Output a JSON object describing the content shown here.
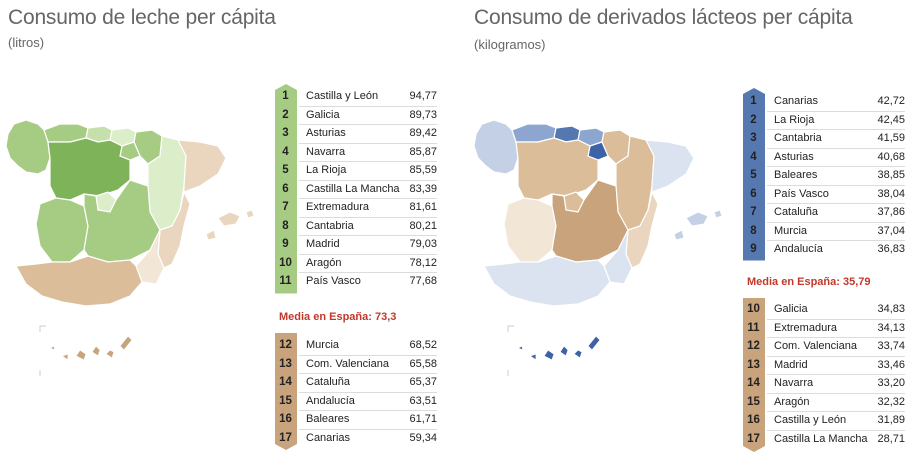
{
  "colors": {
    "green_1": "#7fb35a",
    "green_2": "#a6cc84",
    "green_3": "#c6e0ab",
    "green_4": "#dcedc9",
    "tan_1": "#c9a37b",
    "tan_2": "#dbbd9a",
    "tan_3": "#ead6bf",
    "tan_4": "#f2e6d6",
    "blue_1": "#5578b0",
    "blue_2": "#8da6cf",
    "blue_3": "#c3d0e6",
    "blue_4": "#dbe3f0",
    "media_red": "#c0392b"
  },
  "chart_data": [
    {
      "type": "table",
      "title": "Consumo de leche per cápita",
      "subtitle": "(litros)",
      "above_average": [
        {
          "rank": "1",
          "region": "Castilla y León",
          "value": "94,77"
        },
        {
          "rank": "2",
          "region": "Galicia",
          "value": "89,73"
        },
        {
          "rank": "3",
          "region": "Asturias",
          "value": "89,42"
        },
        {
          "rank": "4",
          "region": "Navarra",
          "value": "85,87"
        },
        {
          "rank": "5",
          "region": "La Rioja",
          "value": "85,59"
        },
        {
          "rank": "6",
          "region": "Castilla La Mancha",
          "value": "83,39"
        },
        {
          "rank": "7",
          "region": "Extremadura",
          "value": "81,61"
        },
        {
          "rank": "8",
          "region": "Cantabria",
          "value": "80,21"
        },
        {
          "rank": "9",
          "region": "Madrid",
          "value": "79,03"
        },
        {
          "rank": "10",
          "region": "Aragón",
          "value": "78,12"
        },
        {
          "rank": "11",
          "region": "País Vasco",
          "value": "77,68"
        }
      ],
      "average_label": "Media en España: 73,3",
      "below_average": [
        {
          "rank": "12",
          "region": "Murcia",
          "value": "68,52"
        },
        {
          "rank": "13",
          "region": "Com. Valenciana",
          "value": "65,58"
        },
        {
          "rank": "14",
          "region": "Cataluña",
          "value": "65,37"
        },
        {
          "rank": "15",
          "region": "Andalucía",
          "value": "63,51"
        },
        {
          "rank": "16",
          "region": "Baleares",
          "value": "61,71"
        },
        {
          "rank": "17",
          "region": "Canarias",
          "value": "59,34"
        }
      ]
    },
    {
      "type": "table",
      "title": "Consumo de derivados lácteos per cápita",
      "subtitle": "(kilogramos)",
      "above_average": [
        {
          "rank": "1",
          "region": "Canarias",
          "value": "42,72"
        },
        {
          "rank": "2",
          "region": "La Rioja",
          "value": "42,45"
        },
        {
          "rank": "3",
          "region": "Cantabria",
          "value": "41,59"
        },
        {
          "rank": "4",
          "region": "Asturias",
          "value": "40,68"
        },
        {
          "rank": "5",
          "region": "Baleares",
          "value": "38,85"
        },
        {
          "rank": "6",
          "region": "País Vasco",
          "value": "38,04"
        },
        {
          "rank": "7",
          "region": "Cataluña",
          "value": "37,86"
        },
        {
          "rank": "8",
          "region": "Murcia",
          "value": "37,04"
        },
        {
          "rank": "9",
          "region": "Andalucía",
          "value": "36,83"
        }
      ],
      "average_label": "Media en España: 35,79",
      "below_average": [
        {
          "rank": "10",
          "region": "Galicia",
          "value": "34,83"
        },
        {
          "rank": "11",
          "region": "Extremadura",
          "value": "34,13"
        },
        {
          "rank": "12",
          "region": "Com. Valenciana",
          "value": "33,74"
        },
        {
          "rank": "13",
          "region": "Madrid",
          "value": "33,46"
        },
        {
          "rank": "14",
          "region": "Navarra",
          "value": "33,20"
        },
        {
          "rank": "15",
          "region": "Aragón",
          "value": "32,32"
        },
        {
          "rank": "16",
          "region": "Castilla y León",
          "value": "31,89"
        },
        {
          "rank": "17",
          "region": "Castilla La Mancha",
          "value": "28,71"
        }
      ]
    }
  ]
}
